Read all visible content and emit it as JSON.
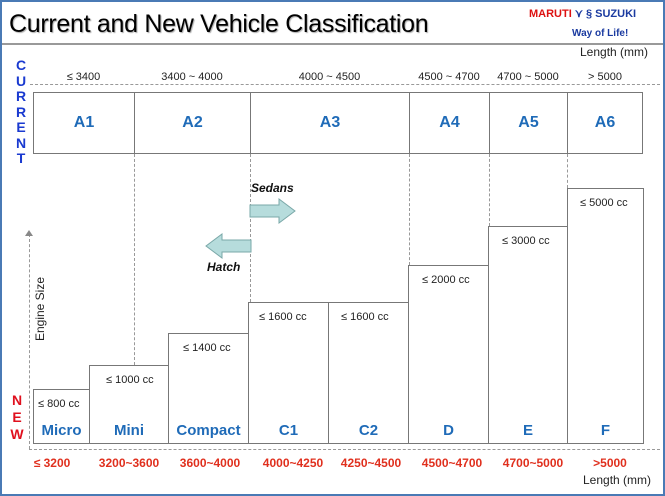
{
  "title": "Current and New Vehicle Classification",
  "logo": {
    "brand1": "MARUTI",
    "brand2": "SUZUKI",
    "tagline": "Way of Life!"
  },
  "current_label": [
    "C",
    "U",
    "R",
    "R",
    "E",
    "N",
    "T"
  ],
  "new_label": [
    "N",
    "E",
    "W"
  ],
  "length_label": "Length (mm)",
  "engine_label": "Engine Size",
  "current": [
    {
      "name": "A1",
      "range": "≤ 3400"
    },
    {
      "name": "A2",
      "range": "3400 ~ 4000"
    },
    {
      "name": "A3",
      "range": "4000 ~ 4500"
    },
    {
      "name": "A4",
      "range": "4500 ~ 4700"
    },
    {
      "name": "A5",
      "range": "4700 ~ 5000"
    },
    {
      "name": "A6",
      "range": "> 5000"
    }
  ],
  "new": [
    {
      "name": "Micro",
      "engine": "≤ 800 cc",
      "range": "≤ 3200"
    },
    {
      "name": "Mini",
      "engine": "≤ 1000 cc",
      "range": "3200~3600"
    },
    {
      "name": "Compact",
      "engine": "≤ 1400 cc",
      "range": "3600~4000"
    },
    {
      "name": "C1",
      "engine": "≤ 1600 cc",
      "range": "4000~4250"
    },
    {
      "name": "C2",
      "engine": "≤ 1600 cc",
      "range": "4250~4500"
    },
    {
      "name": "D",
      "engine": "≤ 2000 cc",
      "range": "4500~4700"
    },
    {
      "name": "E",
      "engine": "≤ 3000 cc",
      "range": "4700~5000"
    },
    {
      "name": "F",
      "engine": "≤ 5000 cc",
      "range": ">5000"
    }
  ],
  "arrows": {
    "sedans": "Sedans",
    "hatch": "Hatch"
  }
}
